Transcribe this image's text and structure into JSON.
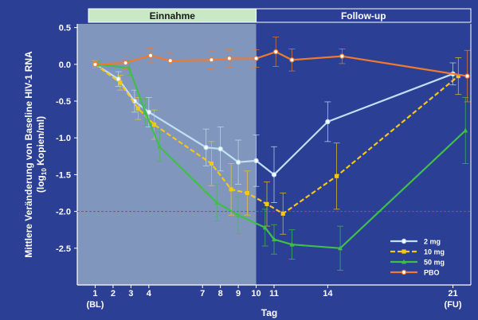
{
  "colors": {
    "background": "#2b3f94",
    "plot_background": "#2b3f94",
    "intake_shade": "#8fa6c4",
    "intake_band": "#c9e8c6",
    "followup_band": "#2b3f94",
    "axis": "#ffffff",
    "threshold": "#e03030"
  },
  "chart_data": {
    "type": "line",
    "ylabel_line1": "Mittlere Veränderung von Baseline HIV-1 RNA",
    "ylabel_line2_pre": "(log",
    "ylabel_line2_sub": "10",
    "ylabel_line2_post": " Kopien/ml)",
    "xlabel": "Tag",
    "phase_labels": [
      "Einnahme",
      "Follow-up"
    ],
    "intake_end_day": 10,
    "xlim": [
      0,
      22
    ],
    "ylim": [
      -3.0,
      0.55
    ],
    "x_ticks": [
      {
        "day": 1,
        "label": "1",
        "sub": "(BL)"
      },
      {
        "day": 2,
        "label": "2",
        "sub": ""
      },
      {
        "day": 3,
        "label": "3",
        "sub": ""
      },
      {
        "day": 4,
        "label": "4",
        "sub": ""
      },
      {
        "day": 7,
        "label": "7",
        "sub": ""
      },
      {
        "day": 8,
        "label": "8",
        "sub": ""
      },
      {
        "day": 9,
        "label": "9",
        "sub": ""
      },
      {
        "day": 10,
        "label": "10",
        "sub": ""
      },
      {
        "day": 11,
        "label": "11",
        "sub": ""
      },
      {
        "day": 14,
        "label": "14",
        "sub": ""
      },
      {
        "day": 21,
        "label": "21",
        "sub": "(FU)"
      }
    ],
    "y_ticks": [
      {
        "value": 0.5,
        "label": "0.5"
      },
      {
        "value": 0.0,
        "label": "0.0"
      },
      {
        "value": -0.5,
        "label": "-0.5"
      },
      {
        "value": -1.0,
        "label": "-1.0"
      },
      {
        "value": -1.5,
        "label": "-1.5"
      },
      {
        "value": -2.0,
        "label": "-2.0"
      },
      {
        "value": -2.5,
        "label": "-2.5"
      }
    ],
    "threshold_y": -2.0,
    "legend_position": "bottom-right",
    "series": [
      {
        "name": "2 mg",
        "color": "#bfe0f2",
        "dash": false,
        "marker": "circle",
        "points": [
          {
            "x": 1,
            "y": 0.0,
            "err": 0.05
          },
          {
            "x": 2.3,
            "y": -0.2,
            "err": 0.1
          },
          {
            "x": 3.2,
            "y": -0.5,
            "err": 0.15
          },
          {
            "x": 4,
            "y": -0.65,
            "err": 0.2
          },
          {
            "x": 7.2,
            "y": -1.13,
            "err": 0.25
          },
          {
            "x": 8,
            "y": -1.15,
            "err": 0.3
          },
          {
            "x": 9,
            "y": -1.33,
            "err": 0.3
          },
          {
            "x": 10,
            "y": -1.31,
            "err": 0.35
          },
          {
            "x": 11,
            "y": -1.5,
            "err": 0.38
          },
          {
            "x": 14,
            "y": -0.78,
            "err": 0.27
          },
          {
            "x": 21,
            "y": -0.13,
            "err": 0.15
          }
        ]
      },
      {
        "name": "10 mg",
        "color": "#f5c518",
        "dash": true,
        "marker": "square",
        "points": [
          {
            "x": 1,
            "y": 0.0,
            "err": 0.05
          },
          {
            "x": 2.4,
            "y": -0.25,
            "err": 0.1
          },
          {
            "x": 3.4,
            "y": -0.6,
            "err": 0.15
          },
          {
            "x": 4.3,
            "y": -0.82,
            "err": 0.2
          },
          {
            "x": 7.5,
            "y": -1.35,
            "err": 0.3
          },
          {
            "x": 8.6,
            "y": -1.7,
            "err": 0.35
          },
          {
            "x": 9.5,
            "y": -1.75,
            "err": 0.3
          },
          {
            "x": 10.6,
            "y": -1.9,
            "err": 0.3
          },
          {
            "x": 11.5,
            "y": -2.03,
            "err": 0.28
          },
          {
            "x": 14.5,
            "y": -1.52,
            "err": 0.45
          },
          {
            "x": 21.3,
            "y": -0.16,
            "err": 0.25
          }
        ]
      },
      {
        "name": "50 mg",
        "color": "#3fbf4a",
        "dash": false,
        "marker": "triangle",
        "points": [
          {
            "x": 1.2,
            "y": 0.0,
            "err": 0.05
          },
          {
            "x": 2.9,
            "y": -0.05,
            "err": 0.1
          },
          {
            "x": 3.8,
            "y": -0.65,
            "err": 0.18
          },
          {
            "x": 4.6,
            "y": -1.12,
            "err": 0.2
          },
          {
            "x": 7.8,
            "y": -1.88,
            "err": 0.25
          },
          {
            "x": 9,
            "y": -2.05,
            "err": 0.25
          },
          {
            "x": 10.5,
            "y": -2.22,
            "err": 0.25
          },
          {
            "x": 11,
            "y": -2.38,
            "err": 0.2
          },
          {
            "x": 12,
            "y": -2.45,
            "err": 0.2
          },
          {
            "x": 14.7,
            "y": -2.5,
            "err": 0.3
          },
          {
            "x": 21.7,
            "y": -0.9,
            "err": 0.45
          }
        ]
      },
      {
        "name": "PBO",
        "color": "#f07a2e",
        "dash": false,
        "marker": "circle",
        "points": [
          {
            "x": 1,
            "y": 0.0,
            "err": 0.05
          },
          {
            "x": 2.7,
            "y": 0.02,
            "err": 0.08
          },
          {
            "x": 4.1,
            "y": 0.12,
            "err": 0.1
          },
          {
            "x": 5.2,
            "y": 0.05,
            "err": 0.1
          },
          {
            "x": 7.5,
            "y": 0.06,
            "err": 0.12
          },
          {
            "x": 8.5,
            "y": 0.08,
            "err": 0.12
          },
          {
            "x": 10,
            "y": 0.08,
            "err": 0.12
          },
          {
            "x": 11.1,
            "y": 0.17,
            "err": 0.2
          },
          {
            "x": 12,
            "y": 0.06,
            "err": 0.15
          },
          {
            "x": 14.8,
            "y": 0.11,
            "err": 0.1
          },
          {
            "x": 21.8,
            "y": -0.16,
            "err": 0.35
          }
        ]
      }
    ]
  }
}
